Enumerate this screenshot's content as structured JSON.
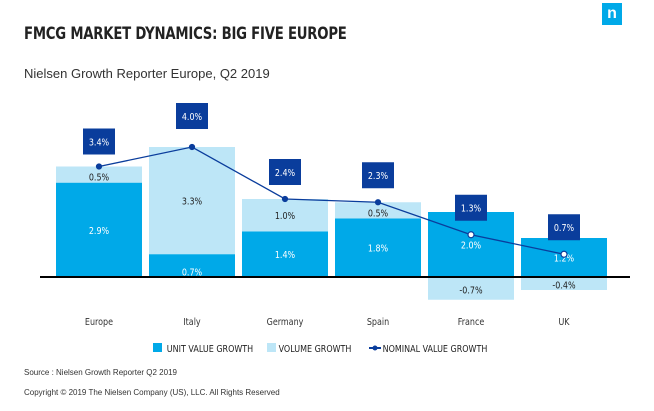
{
  "header": {
    "title": "FMCG MARKET DYNAMICS: BIG FIVE EUROPE",
    "subtitle": "Nielsen Growth Reporter Europe, Q2 2019",
    "logo": "n"
  },
  "chart_data": {
    "type": "bar",
    "stacked": true,
    "categories": [
      "Europe",
      "Italy",
      "Germany",
      "Spain",
      "France",
      "UK"
    ],
    "series": [
      {
        "name": "UNIT VALUE GROWTH",
        "type": "bar",
        "color": "#00a9e8",
        "values": [
          2.9,
          0.7,
          1.4,
          1.8,
          2.0,
          1.2
        ],
        "labels": [
          "2.9%",
          "0.7%",
          "1.4%",
          "1.8%",
          "2.0%",
          "1.2%"
        ]
      },
      {
        "name": "VOLUME GROWTH",
        "type": "bar",
        "color": "#bde6f7",
        "values": [
          0.5,
          3.3,
          1.0,
          0.5,
          -0.7,
          -0.4
        ],
        "labels": [
          "0.5%",
          "3.3%",
          "1.0%",
          "0.5%",
          "-0.7%",
          "-0.4%"
        ]
      },
      {
        "name": "NOMINAL VALUE GROWTH",
        "type": "line",
        "color": "#0a3d9c",
        "values": [
          3.4,
          4.0,
          2.4,
          2.3,
          1.3,
          0.7
        ],
        "labels": [
          "3.4%",
          "4.0%",
          "2.4%",
          "2.3%",
          "1.3%",
          "0.7%"
        ]
      }
    ],
    "legend": "bottom"
  },
  "footer": {
    "source": "Source : Nielsen Growth Reporter Q2 2019",
    "copyright": "Copyright © 2019 The Nielsen Company (US), LLC. All Rights Reserved"
  }
}
